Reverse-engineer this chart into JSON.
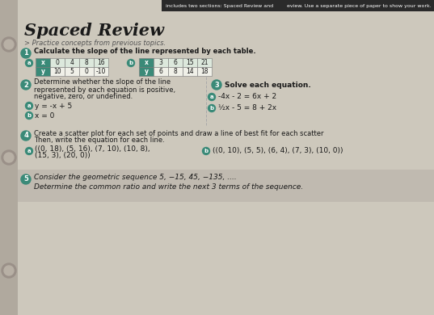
{
  "bg_color": "#c5bfb5",
  "page_bg": "#cdc8bc",
  "binding_color": "#b0a99e",
  "teal_color": "#3a8a78",
  "header_bar_color": "#2a2a2a",
  "title": "Spaced Review",
  "subtitle": "> Practice concepts from previous topics.",
  "header_line1": "includes two sections: Spaced Review and",
  "header_line2": "eview. Use a separate piece of paper to show your work.",
  "q1_label": "1",
  "q1_text": "Calculate the slope of the line represented by each table.",
  "table_a_x": [
    "x",
    "0",
    "4",
    "8",
    "16"
  ],
  "table_a_y": [
    "y",
    "10",
    "5",
    "0",
    "-10"
  ],
  "table_b_x": [
    "x",
    "3",
    "6",
    "15",
    "21"
  ],
  "table_b_y": [
    "y",
    "6",
    "8",
    "14",
    "18"
  ],
  "q2_label": "2",
  "q2_text_line1": "Determine whether the slope of the line",
  "q2_text_line2": "represented by each equation is positive,",
  "q2_text_line3": "negative, zero, or undefined.",
  "q2a": "y = -x + 5",
  "q2b": "x = 0",
  "q3_label": "3",
  "q3_text": "Solve each equation.",
  "q3a": "-4x - 2 = 6x + 2",
  "q3b": "½x - 5 = 8 + 2x",
  "q4_label": "4",
  "q4_text_line1": "Create a scatter plot for each set of points and draw a line of best fit for each scatter",
  "q4_text_line2": "Then, write the equation for each line.",
  "q4a_line1": "((0, 18), (5, 16), (7, 10), (10, 8),",
  "q4a_line2": "(15, 3), (20, 0))",
  "q4b": "((0, 10), (5, 5), (6, 4), (7, 3), (10, 0))",
  "q5_label": "5",
  "q5_text_line1": "Consider the geometric sequence 5, −15, 45, −135, ....",
  "q5_text_line2": "Determine the common ratio and write the next 3 terms of the sequence.",
  "white": "#ffffff",
  "black": "#1a1a1a",
  "text_dark": "#222222"
}
